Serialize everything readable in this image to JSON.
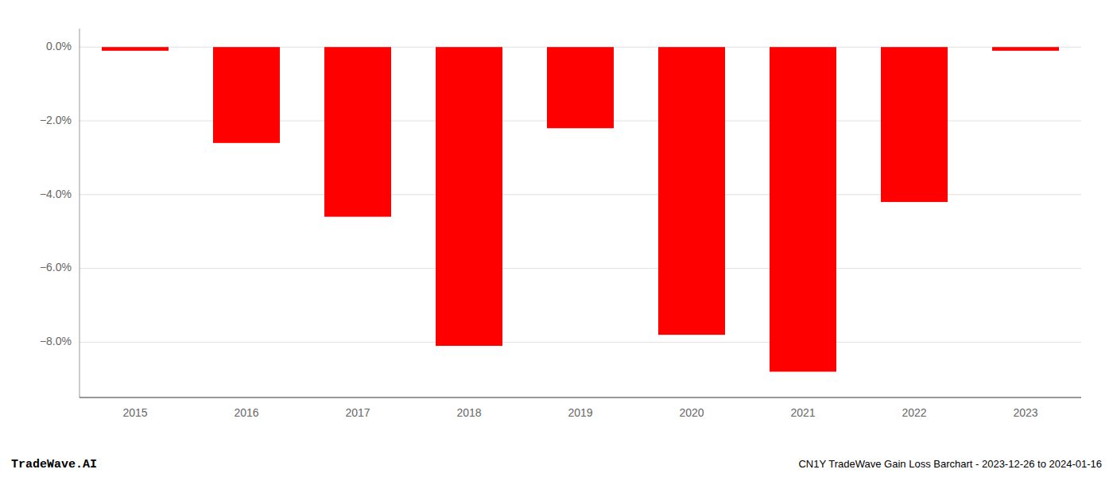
{
  "chart_data": {
    "type": "bar",
    "title": "CN1Y TradeWave Gain Loss Barchart - 2023-12-26 to 2024-01-16",
    "annotations": [
      "TradeWave.AI"
    ],
    "categories": [
      "2015",
      "2016",
      "2017",
      "2018",
      "2019",
      "2020",
      "2021",
      "2022",
      "2023"
    ],
    "values": [
      -0.001,
      -0.026,
      -0.046,
      -0.081,
      -0.022,
      -0.078,
      -0.088,
      -0.042,
      -0.001
    ],
    "color": "#ff0000",
    "ylim": [
      -0.095,
      0.005
    ],
    "yticks": [
      {
        "value": 0.0,
        "label": "0.0%"
      },
      {
        "value": -0.02,
        "label": "−2.0%"
      },
      {
        "value": -0.04,
        "label": "−4.0%"
      },
      {
        "value": -0.06,
        "label": "−6.0%"
      },
      {
        "value": -0.08,
        "label": "−8.0%"
      }
    ],
    "grid": true
  }
}
